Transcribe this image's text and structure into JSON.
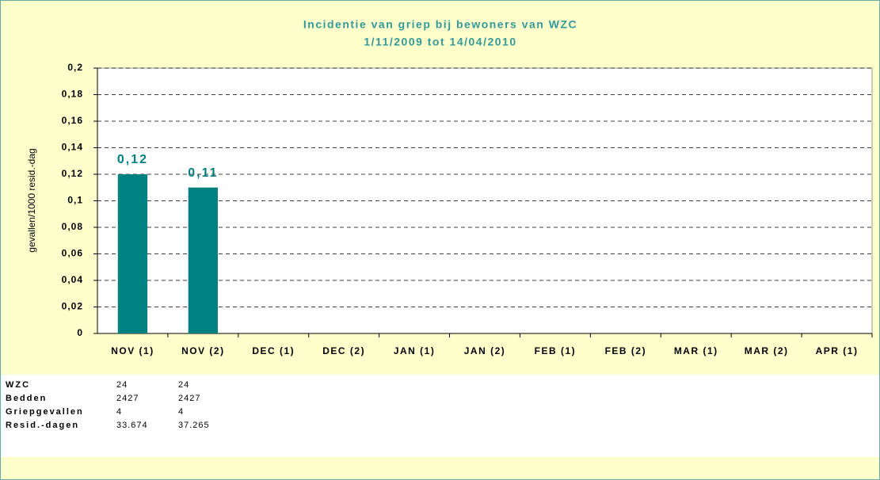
{
  "chart_data": {
    "type": "bar",
    "title": "Incidentie van griep bij bewoners van WZC",
    "subtitle": "1/11/2009 tot 14/04/2010",
    "y_label": "gevallen/1000 resid.-dag",
    "categories": [
      "NOV (1)",
      "NOV (2)",
      "DEC (1)",
      "DEC (2)",
      "JAN (1)",
      "JAN (2)",
      "FEB (1)",
      "FEB (2)",
      "MAR (1)",
      "MAR (2)",
      "APR (1)"
    ],
    "values": [
      0.12,
      0.11,
      null,
      null,
      null,
      null,
      null,
      null,
      null,
      null,
      null
    ],
    "value_labels": [
      "0,12",
      "0,11",
      null,
      null,
      null,
      null,
      null,
      null,
      null,
      null,
      null
    ],
    "color": "#008080",
    "ylim": [
      0,
      0.2
    ],
    "yticks": [
      0,
      {
        "value": 0.02,
        "label": "0,02"
      },
      {
        "value": 0.04,
        "label": "0,04"
      },
      {
        "value": 0.06,
        "label": "0,06"
      },
      {
        "value": 0.08,
        "label": "0,08"
      },
      {
        "value": 0.1,
        "label": "0,1"
      },
      {
        "value": 0.12,
        "label": "0,12"
      },
      {
        "value": 0.14,
        "label": "0,14"
      },
      {
        "value": 0.16,
        "label": "0,16"
      },
      {
        "value": 0.18,
        "label": "0,18"
      },
      {
        "value": 0.2,
        "label": "0,2"
      }
    ],
    "grid": true
  },
  "table": {
    "rows": [
      [
        "WZC",
        "24",
        "24"
      ],
      [
        "Bedden",
        "2427",
        "2427"
      ],
      [
        "Griepgevallen",
        "4",
        "4"
      ],
      [
        "Resid.-dagen",
        "33.674",
        "37.265"
      ]
    ]
  }
}
